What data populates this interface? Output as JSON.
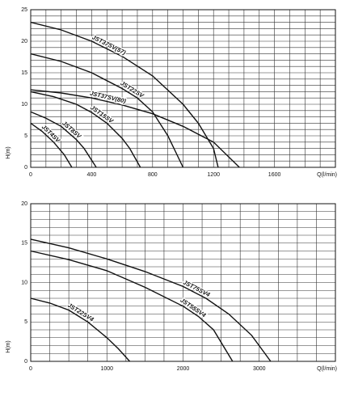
{
  "chart_data": [
    {
      "type": "line",
      "xlabel": "Q(l/min)",
      "ylabel": "H(m)",
      "xlim": [
        0,
        2000
      ],
      "ylim": [
        0,
        25
      ],
      "xticks": [
        0,
        400,
        800,
        1200,
        1600
      ],
      "yticks": [
        0,
        5,
        10,
        15,
        20,
        25
      ],
      "xgrid": [
        0,
        100,
        200,
        300,
        400,
        500,
        600,
        700,
        800,
        900,
        1000,
        1100,
        1200,
        1300,
        1400,
        1500,
        1600,
        1700,
        1800,
        1900,
        2000
      ],
      "ygrid": [
        0,
        1,
        2,
        3,
        4,
        5,
        6,
        7,
        8,
        9,
        10,
        11,
        12,
        13,
        14,
        15,
        16,
        17,
        18,
        19,
        20,
        21,
        22,
        23,
        24,
        25
      ],
      "series": [
        {
          "name": "JST37SV(57)",
          "color": "#111111",
          "x": [
            0,
            200,
            400,
            600,
            800,
            1000,
            1100,
            1200,
            1230
          ],
          "values": [
            23,
            21.8,
            20,
            17.6,
            14.5,
            10,
            7,
            3,
            0
          ]
        },
        {
          "name": "JST22SV",
          "color": "#111111",
          "x": [
            0,
            200,
            400,
            600,
            700,
            800,
            900,
            1000
          ],
          "values": [
            18,
            16.8,
            15,
            12.5,
            11,
            8.8,
            5,
            0
          ]
        },
        {
          "name": "JST37SV(80)",
          "color": "#111111",
          "x": [
            0,
            200,
            400,
            600,
            800,
            1000,
            1200,
            1370
          ],
          "values": [
            12.3,
            11.8,
            11,
            9.9,
            8.5,
            6.5,
            4,
            0
          ]
        },
        {
          "name": "JST15SV",
          "color": "#111111",
          "x": [
            0,
            150,
            300,
            400,
            500,
            600,
            650,
            720
          ],
          "values": [
            12,
            11.2,
            10,
            8.7,
            7,
            4.6,
            3,
            0
          ]
        },
        {
          "name": "JST8SV",
          "color": "#111111",
          "x": [
            0,
            100,
            200,
            300,
            350,
            430
          ],
          "values": [
            8.8,
            7.8,
            6.5,
            4.4,
            3,
            0
          ]
        },
        {
          "name": "JST4SV",
          "color": "#111111",
          "x": [
            0,
            75,
            150,
            220,
            270
          ],
          "values": [
            7,
            5.7,
            4,
            2,
            0
          ]
        }
      ]
    },
    {
      "type": "line",
      "xlabel": "Q(l/min)",
      "ylabel": "H(m)",
      "xlim": [
        0,
        4000
      ],
      "ylim": [
        0,
        20
      ],
      "xticks": [
        0,
        1000,
        2000,
        3000
      ],
      "yticks": [
        0,
        5,
        10,
        15,
        20
      ],
      "xgrid": [
        0,
        250,
        500,
        750,
        1000,
        1250,
        1500,
        1750,
        2000,
        2250,
        2500,
        2750,
        3000,
        3250,
        3500,
        3750,
        4000
      ],
      "ygrid": [
        0,
        1,
        2,
        3,
        4,
        5,
        6,
        7,
        8,
        9,
        10,
        11,
        12,
        13,
        14,
        15,
        16,
        17,
        18,
        19,
        20
      ],
      "series": [
        {
          "name": "JST75SV4",
          "color": "#111111",
          "x": [
            0,
            500,
            1000,
            1500,
            2000,
            2300,
            2600,
            2900,
            3150
          ],
          "values": [
            15.5,
            14.4,
            13,
            11.4,
            9.5,
            8,
            6,
            3.3,
            0
          ]
        },
        {
          "name": "JST55SV4",
          "color": "#111111",
          "x": [
            0,
            500,
            1000,
            1500,
            2000,
            2200,
            2400,
            2650
          ],
          "values": [
            14,
            12.9,
            11.5,
            9.4,
            7,
            5.7,
            4,
            0
          ]
        },
        {
          "name": "JST22SV4",
          "color": "#111111",
          "x": [
            0,
            250,
            500,
            750,
            1000,
            1150,
            1300
          ],
          "values": [
            8,
            7.4,
            6.5,
            5,
            3,
            1.6,
            0
          ]
        }
      ]
    }
  ]
}
